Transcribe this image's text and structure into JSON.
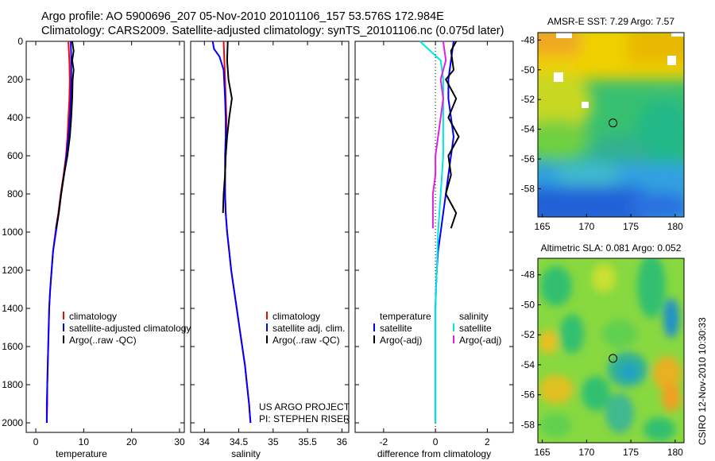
{
  "header": {
    "line1": "Argo profile: AO 5900696_207 05-Nov-2010 20101106_157 53.576S 172.984E",
    "line2": "Climatology: CARS2009. Satellite-adjusted climatology: synTS_20101106.nc (0.075d later)"
  },
  "footer": {
    "project_line1": "US ARGO PROJECT",
    "project_line2": "PI: STEPHEN RISER",
    "credit": "CSIRO 12-Nov-2010 10:30:33"
  },
  "chart_data": [
    {
      "type": "line",
      "id": "temperature",
      "xlabel": "temperature",
      "ylabel": "",
      "xlim": [
        -2,
        31
      ],
      "ylim": [
        2050,
        0
      ],
      "xticks": [
        0,
        10,
        20,
        30
      ],
      "yticks": [
        0,
        200,
        400,
        600,
        800,
        1000,
        1200,
        1400,
        1600,
        1800,
        2000
      ],
      "series": [
        {
          "name": "climatology",
          "color": "#ff0000",
          "points": [
            [
              6.8,
              0
            ],
            [
              7.0,
              100
            ],
            [
              7.1,
              200
            ],
            [
              7.0,
              300
            ],
            [
              6.8,
              400
            ],
            [
              6.6,
              500
            ],
            [
              6.3,
              600
            ],
            [
              5.8,
              700
            ],
            [
              5.2,
              800
            ],
            [
              4.7,
              900
            ],
            [
              4.1,
              1000
            ],
            [
              3.6,
              1100
            ],
            [
              3.3,
              1200
            ],
            [
              3.0,
              1300
            ],
            [
              2.8,
              1400
            ],
            [
              2.7,
              1500
            ],
            [
              2.6,
              1600
            ],
            [
              2.5,
              1700
            ],
            [
              2.4,
              1800
            ],
            [
              2.4,
              1900
            ],
            [
              2.3,
              2000
            ]
          ]
        },
        {
          "name": "satellite-adjusted climatology",
          "color": "#0000ff",
          "points": [
            [
              7.3,
              0
            ],
            [
              7.4,
              100
            ],
            [
              7.4,
              200
            ],
            [
              7.3,
              300
            ],
            [
              7.1,
              400
            ],
            [
              6.8,
              500
            ],
            [
              6.4,
              600
            ],
            [
              5.9,
              700
            ],
            [
              5.3,
              800
            ],
            [
              4.8,
              900
            ],
            [
              4.2,
              1000
            ],
            [
              3.6,
              1100
            ],
            [
              3.3,
              1200
            ],
            [
              3.0,
              1300
            ],
            [
              2.8,
              1400
            ],
            [
              2.7,
              1500
            ],
            [
              2.6,
              1600
            ],
            [
              2.5,
              1700
            ],
            [
              2.4,
              1800
            ],
            [
              2.3,
              1900
            ],
            [
              2.3,
              2000
            ]
          ]
        },
        {
          "name": "Argo(..raw -QC)",
          "color": "#000000",
          "points": [
            [
              7.6,
              0
            ],
            [
              7.9,
              50
            ],
            [
              7.6,
              100
            ],
            [
              7.9,
              150
            ],
            [
              7.7,
              200
            ],
            [
              7.6,
              300
            ],
            [
              7.4,
              400
            ],
            [
              7.1,
              500
            ],
            [
              6.6,
              600
            ],
            [
              5.9,
              700
            ],
            [
              5.3,
              800
            ],
            [
              4.8,
              900
            ],
            [
              4.2,
              980
            ]
          ]
        }
      ],
      "legend": {
        "position": "lower-right",
        "entries": [
          "climatology",
          "satellite-adjusted climatology",
          "Argo(..raw -QC)"
        ]
      }
    },
    {
      "type": "line",
      "id": "salinity",
      "xlabel": "salinity",
      "ylabel": "",
      "xlim": [
        33.8,
        36.1
      ],
      "ylim": [
        2050,
        0
      ],
      "xticks": [
        34,
        34.5,
        35,
        35.5,
        36
      ],
      "yticks": [],
      "series": [
        {
          "name": "climatology",
          "color": "#ff0000",
          "points": [
            [
              34.28,
              0
            ],
            [
              34.29,
              100
            ],
            [
              34.3,
              200
            ],
            [
              34.31,
              300
            ],
            [
              34.32,
              400
            ],
            [
              34.32,
              500
            ],
            [
              34.31,
              600
            ],
            [
              34.3,
              700
            ],
            [
              34.3,
              800
            ],
            [
              34.31,
              900
            ],
            [
              34.33,
              1000
            ],
            [
              34.36,
              1100
            ],
            [
              34.39,
              1200
            ],
            [
              34.43,
              1300
            ],
            [
              34.47,
              1400
            ],
            [
              34.51,
              1500
            ],
            [
              34.55,
              1600
            ],
            [
              34.59,
              1700
            ],
            [
              34.62,
              1800
            ],
            [
              34.65,
              1900
            ],
            [
              34.67,
              2000
            ]
          ]
        },
        {
          "name": "satellite adj. clim.",
          "color": "#0000ff",
          "points": [
            [
              34.12,
              0
            ],
            [
              34.14,
              40
            ],
            [
              34.22,
              80
            ],
            [
              34.28,
              150
            ],
            [
              34.3,
              300
            ],
            [
              34.31,
              400
            ],
            [
              34.31,
              500
            ],
            [
              34.3,
              600
            ],
            [
              34.3,
              700
            ],
            [
              34.3,
              800
            ],
            [
              34.31,
              900
            ],
            [
              34.33,
              1000
            ],
            [
              34.36,
              1100
            ],
            [
              34.39,
              1200
            ],
            [
              34.43,
              1300
            ],
            [
              34.47,
              1400
            ],
            [
              34.51,
              1500
            ],
            [
              34.55,
              1600
            ],
            [
              34.59,
              1700
            ],
            [
              34.62,
              1800
            ],
            [
              34.65,
              1900
            ],
            [
              34.67,
              2000
            ]
          ]
        },
        {
          "name": "Argo(..raw -QC)",
          "color": "#000000",
          "points": [
            [
              34.34,
              0
            ],
            [
              34.33,
              100
            ],
            [
              34.35,
              200
            ],
            [
              34.4,
              300
            ],
            [
              34.36,
              400
            ],
            [
              34.33,
              500
            ],
            [
              34.31,
              600
            ],
            [
              34.3,
              700
            ],
            [
              34.28,
              800
            ],
            [
              34.27,
              900
            ]
          ]
        }
      ],
      "legend": {
        "position": "lower-right",
        "entries": [
          "climatology",
          "satellite adj. clim.",
          "Argo(..raw -QC)"
        ]
      }
    },
    {
      "type": "line",
      "id": "difference",
      "xlabel": "difference from climatology",
      "ylabel": "",
      "xlim": [
        -3.1,
        3.0
      ],
      "ylim": [
        2050,
        0
      ],
      "xticks": [
        -2,
        0,
        2
      ],
      "yticks": [],
      "series": [
        {
          "name": "temperature satellite",
          "color": "#0000ff",
          "points": [
            [
              0.7,
              0
            ],
            [
              0.6,
              100
            ],
            [
              0.5,
              200
            ],
            [
              0.5,
              300
            ],
            [
              0.6,
              400
            ],
            [
              0.7,
              500
            ],
            [
              0.6,
              600
            ],
            [
              0.5,
              700
            ],
            [
              0.4,
              800
            ],
            [
              0.3,
              900
            ],
            [
              0.2,
              1000
            ],
            [
              0.1,
              1100
            ],
            [
              0.05,
              1200
            ],
            [
              0.02,
              1300
            ],
            [
              0.0,
              1400
            ],
            [
              0.0,
              1600
            ],
            [
              0.0,
              1800
            ],
            [
              0.0,
              2000
            ]
          ]
        },
        {
          "name": "temperature Argo(-adj)",
          "color": "#000000",
          "points": [
            [
              0.8,
              0
            ],
            [
              0.6,
              50
            ],
            [
              0.7,
              150
            ],
            [
              0.4,
              200
            ],
            [
              0.8,
              300
            ],
            [
              0.5,
              400
            ],
            [
              0.9,
              500
            ],
            [
              0.5,
              600
            ],
            [
              0.6,
              700
            ],
            [
              0.4,
              800
            ],
            [
              0.8,
              900
            ],
            [
              0.6,
              980
            ]
          ]
        },
        {
          "name": "salinity satellite",
          "color": "#00e5e5",
          "points": [
            [
              -0.6,
              0
            ],
            [
              -0.2,
              50
            ],
            [
              0.2,
              100
            ],
            [
              0.3,
              200
            ],
            [
              0.3,
              400
            ],
            [
              0.3,
              600
            ],
            [
              0.2,
              800
            ],
            [
              0.1,
              1000
            ],
            [
              0.05,
              1200
            ],
            [
              0.0,
              1400
            ],
            [
              0.0,
              1600
            ],
            [
              0.0,
              1800
            ],
            [
              0.0,
              2000
            ]
          ]
        },
        {
          "name": "salinity Argo(-adj)",
          "color": "#e020e0",
          "points": [
            [
              0.3,
              0
            ],
            [
              0.4,
              100
            ],
            [
              0.2,
              200
            ],
            [
              0.3,
              300
            ],
            [
              0.2,
              400
            ],
            [
              0.1,
              500
            ],
            [
              0.0,
              600
            ],
            [
              0.0,
              700
            ],
            [
              -0.1,
              800
            ],
            [
              -0.1,
              900
            ],
            [
              -0.1,
              980
            ]
          ]
        }
      ],
      "legend": {
        "position": "lower-right",
        "columns": [
          {
            "title": "temperature",
            "entries": [
              "satellite",
              "Argo(-adj)"
            ]
          },
          {
            "title": "salinity",
            "entries": [
              "satellite",
              "Argo(-adj)"
            ]
          }
        ]
      }
    },
    {
      "type": "heatmap",
      "id": "sst_map",
      "title": "AMSR-E SST: 7.29 Argo: 7.57",
      "xlim": [
        164.5,
        181
      ],
      "ylim": [
        -59.9,
        -47.5
      ],
      "xticks": [
        165,
        170,
        175,
        180
      ],
      "yticks": [
        -48,
        -50,
        -52,
        -54,
        -56,
        -58
      ],
      "argo_position": {
        "lon": 172.984,
        "lat": -53.576
      }
    },
    {
      "type": "heatmap",
      "id": "sla_map",
      "title": "Altimetric SLA: 0.081 Argo: 0.052",
      "xlim": [
        164.5,
        181
      ],
      "ylim": [
        -59.2,
        -46.9
      ],
      "xticks": [
        165,
        170,
        175,
        180
      ],
      "yticks": [
        -48,
        -50,
        -52,
        -54,
        -56,
        -58
      ],
      "argo_position": {
        "lon": 172.984,
        "lat": -53.576
      }
    }
  ]
}
